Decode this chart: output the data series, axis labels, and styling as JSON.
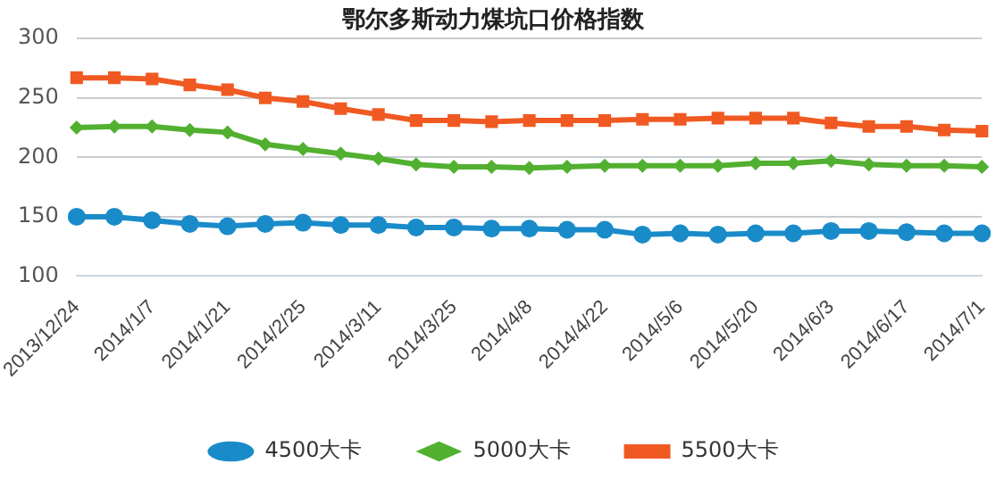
{
  "chart_data": {
    "type": "line",
    "title": "鄂尔多斯动力煤坑口价格指数",
    "categories": [
      "2013/12/24",
      null,
      "2014/1/7",
      null,
      "2014/1/21",
      null,
      "2014/2/25",
      null,
      "2014/3/11",
      null,
      "2014/3/25",
      null,
      "2014/4/8",
      null,
      "2014/4/22",
      null,
      "2014/5/6",
      null,
      "2014/5/20",
      null,
      "2014/6/3",
      null,
      "2014/6/17",
      null,
      "2014/7/1"
    ],
    "series": [
      {
        "name": "4500大卡",
        "color": "#1a8bc9",
        "marker": "circle",
        "values": [
          150,
          150,
          147,
          144,
          142,
          144,
          145,
          143,
          143,
          141,
          141,
          140,
          140,
          139,
          139,
          135,
          136,
          135,
          136,
          136,
          138,
          138,
          137,
          136,
          136
        ]
      },
      {
        "name": "5000大卡",
        "color": "#52b030",
        "marker": "diamond",
        "values": [
          225,
          226,
          226,
          223,
          221,
          211,
          207,
          203,
          199,
          194,
          192,
          192,
          191,
          192,
          193,
          193,
          193,
          193,
          195,
          195,
          197,
          194,
          193,
          193,
          192
        ]
      },
      {
        "name": "5500大卡",
        "color": "#f05a22",
        "marker": "square",
        "values": [
          267,
          267,
          266,
          261,
          257,
          250,
          247,
          241,
          236,
          231,
          231,
          230,
          231,
          231,
          231,
          232,
          232,
          233,
          233,
          233,
          229,
          226,
          226,
          223,
          222
        ]
      }
    ],
    "ylim": [
      100,
      300
    ],
    "yticks": [
      100,
      150,
      200,
      250,
      300
    ],
    "grid": "y",
    "legend": "bottom"
  }
}
